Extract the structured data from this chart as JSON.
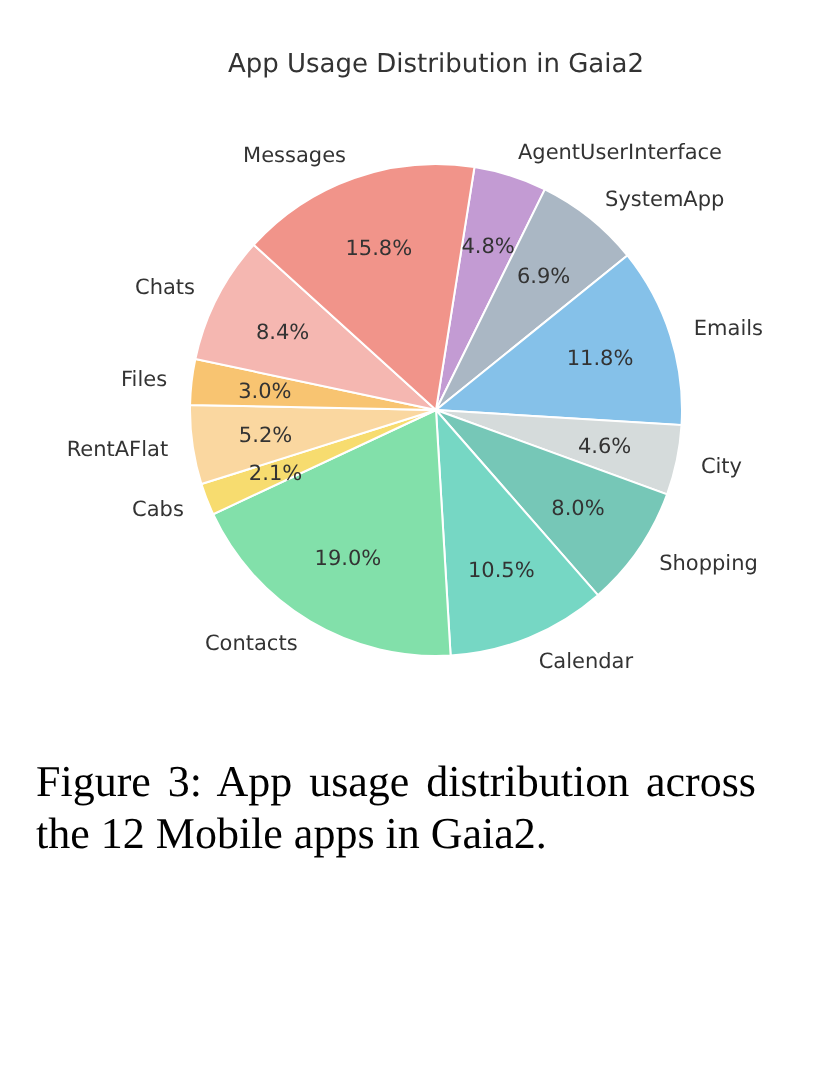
{
  "chart_data": {
    "type": "pie",
    "title": "App Usage Distribution in Gaia2",
    "categories": [
      "AgentUserInterface",
      "SystemApp",
      "Emails",
      "City",
      "Shopping",
      "Calendar",
      "Contacts",
      "Cabs",
      "RentAFlat",
      "Files",
      "Chats",
      "Messages"
    ],
    "values": [
      4.8,
      6.9,
      11.8,
      4.6,
      8.0,
      10.5,
      19.0,
      2.1,
      5.2,
      3.0,
      8.4,
      15.8
    ],
    "value_labels": [
      "4.8%",
      "6.9%",
      "11.8%",
      "4.6%",
      "8.0%",
      "10.5%",
      "19.0%",
      "2.1%",
      "5.2%",
      "3.0%",
      "8.4%",
      "15.8%"
    ],
    "colors": [
      "#c39bd3",
      "#aab7c4",
      "#85c1e9",
      "#d5dbdb",
      "#76c7b7",
      "#76d7c4",
      "#82e0aa",
      "#f7dc6f",
      "#fad7a0",
      "#f8c471",
      "#f5b7b1",
      "#f1948a"
    ],
    "annotations": [
      "Figure 3: App usage distribution across the 12 Mobile apps in Gaia2."
    ]
  }
}
